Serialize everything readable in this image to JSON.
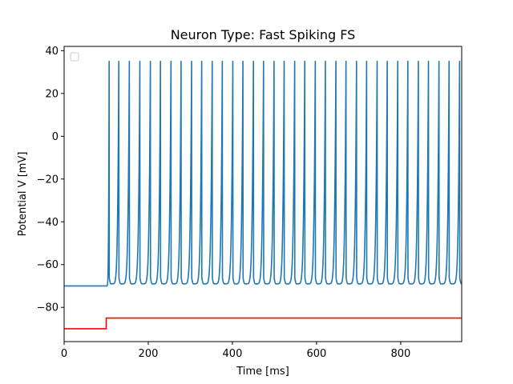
{
  "chart_data": {
    "type": "line",
    "title": "Neuron Type: Fast Spiking FS",
    "xlabel": "Time [ms]",
    "ylabel": "Potential V [mV]",
    "xlim": [
      0,
      945
    ],
    "ylim": [
      -96,
      42
    ],
    "xticks": [
      0,
      200,
      400,
      600,
      800
    ],
    "xtick_labels": [
      "0",
      "200",
      "400",
      "600",
      "800"
    ],
    "yticks": [
      -80,
      -60,
      -40,
      -20,
      0,
      20,
      40
    ],
    "ytick_labels": [
      "−80",
      "−60",
      "−40",
      "−20",
      "0",
      "20",
      "40"
    ],
    "grid": false,
    "legend": {
      "placement": "top-left",
      "entries": []
    },
    "series": [
      {
        "kind": "membrane-potential",
        "color": "#1f77b4",
        "rest_value": -70,
        "stimulus_onset": 100,
        "spike_peak": 35,
        "reset_value": -66,
        "trough_value": -69,
        "spike_times": [
          107,
          130,
          155,
          180,
          205,
          229,
          254,
          278,
          303,
          327,
          352,
          376,
          401,
          425,
          450,
          474,
          499,
          523,
          548,
          572,
          597,
          621,
          646,
          670,
          695,
          719,
          744,
          768,
          793,
          817,
          842,
          866,
          891,
          915,
          940
        ]
      },
      {
        "kind": "input-current",
        "color": "#ff0000",
        "x": [
          0,
          100,
          100,
          945
        ],
        "y": [
          -90,
          -90,
          -85,
          -85
        ]
      }
    ]
  }
}
